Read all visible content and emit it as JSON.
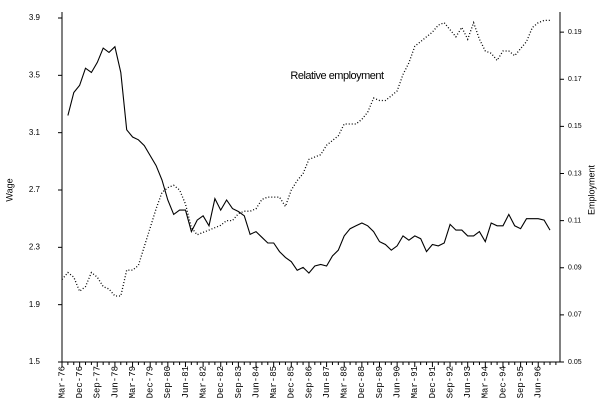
{
  "chart_data": {
    "type": "line",
    "ylabel": "Wage",
    "y2label": "Employment",
    "annotation": "Relative employment",
    "categories": [
      "Mar-76",
      null,
      null,
      "Dec-76",
      null,
      null,
      "Sep-77",
      null,
      null,
      "Jun-78",
      null,
      null,
      "Mar-79",
      null,
      null,
      "Dec-79",
      null,
      null,
      "Sep-80",
      null,
      null,
      "Jun-81",
      null,
      null,
      "Mar-82",
      null,
      null,
      "Dec-82",
      null,
      null,
      "Sep-83",
      null,
      null,
      "Jun-84",
      null,
      null,
      "Mar-85",
      null,
      null,
      "Dec-85",
      null,
      null,
      "Sep-86",
      null,
      null,
      "Jun-87",
      null,
      null,
      "Mar-88",
      null,
      null,
      "Dec-88",
      null,
      null,
      "Sep-89",
      null,
      null,
      "Jun-90",
      null,
      null,
      "Mar-91",
      null,
      null,
      "Dec-91",
      null,
      null,
      "Sep-92",
      null,
      null,
      "Jun-93",
      null,
      null,
      "Mar-94",
      null,
      null,
      "Dec-94",
      null,
      null,
      "Sep-95",
      null,
      null,
      "Jun-96",
      null,
      null,
      null
    ],
    "series": [
      {
        "color": "#000000",
        "style": "solid",
        "values": [
          null,
          3.22,
          3.38,
          3.43,
          3.55,
          3.52,
          3.59,
          3.69,
          3.66,
          3.7,
          3.52,
          3.12,
          3.07,
          3.05,
          3.01,
          2.94,
          2.87,
          2.77,
          2.63,
          2.53,
          2.56,
          2.56,
          2.41,
          2.49,
          2.52,
          2.45,
          2.64,
          2.56,
          2.63,
          2.57,
          2.55,
          2.52,
          2.39,
          2.41,
          2.37,
          2.33,
          2.33,
          2.27,
          2.23,
          2.2,
          2.14,
          2.16,
          2.12,
          2.17,
          2.18,
          2.17,
          2.24,
          2.28,
          2.38,
          2.43,
          2.45,
          2.47,
          2.45,
          2.41,
          2.34,
          2.32,
          2.28,
          2.31,
          2.38,
          2.35,
          2.38,
          2.36,
          2.27,
          2.32,
          2.31,
          2.33,
          2.46,
          2.42,
          2.42,
          2.38,
          2.38,
          2.41,
          2.34,
          2.47,
          2.45,
          2.45,
          2.53,
          2.45,
          2.43,
          2.5,
          2.5,
          2.5,
          2.49,
          2.42,
          null
        ]
      },
      {
        "color": "#000000",
        "style": "dotted",
        "axis": "y2",
        "values": [
          0.085,
          0.088,
          0.086,
          0.08,
          0.082,
          0.088,
          0.086,
          0.082,
          0.081,
          0.078,
          0.078,
          0.089,
          0.089,
          0.091,
          0.099,
          0.107,
          0.115,
          0.122,
          0.124,
          0.125,
          0.123,
          0.117,
          0.107,
          0.104,
          0.105,
          0.106,
          0.107,
          0.108,
          0.11,
          0.11,
          0.113,
          0.114,
          0.114,
          0.115,
          0.119,
          0.12,
          0.12,
          0.12,
          0.116,
          0.123,
          0.127,
          0.13,
          0.136,
          0.137,
          0.138,
          0.142,
          0.144,
          0.146,
          0.151,
          0.151,
          0.151,
          0.153,
          0.156,
          0.162,
          0.161,
          0.161,
          0.163,
          0.165,
          0.172,
          0.177,
          0.184,
          0.186,
          0.188,
          0.19,
          0.193,
          0.194,
          0.191,
          0.188,
          0.192,
          0.187,
          0.194,
          0.187,
          0.182,
          0.181,
          0.178,
          0.182,
          0.182,
          0.18,
          0.183,
          0.186,
          0.192,
          0.194,
          0.195,
          0.195,
          null
        ]
      }
    ],
    "ylim": [
      1.5,
      3.9
    ],
    "yticks": [
      1.5,
      1.9,
      2.3,
      2.7,
      3.1,
      3.5,
      3.9
    ],
    "y2lim": [
      0.05,
      0.196
    ],
    "y2ticks": [
      0.05,
      0.07,
      0.09,
      0.11,
      0.13,
      0.15,
      0.17,
      0.19
    ]
  }
}
